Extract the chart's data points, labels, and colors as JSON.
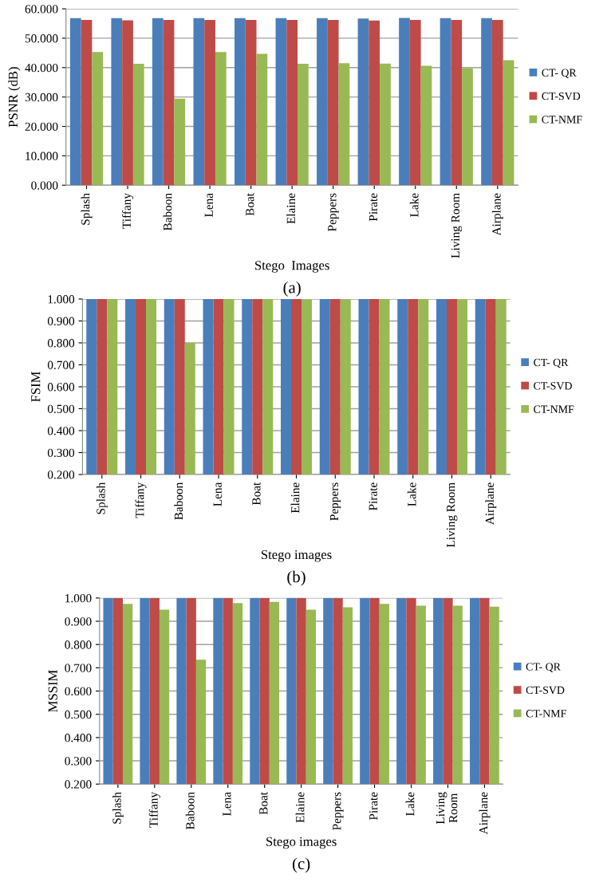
{
  "chart_data": [
    {
      "type": "bar",
      "xlabel": "Stego  Images",
      "ylabel": "PSNR (dB)",
      "annotations": [
        "(a)"
      ],
      "categories": [
        "Splash",
        "Tiffany",
        "Baboon",
        "Lena",
        "Boat",
        "Elaine",
        "Peppers",
        "Pirate",
        "Lake",
        "Living Room",
        "Airplane"
      ],
      "series": [
        {
          "name": "CT- QR",
          "color": "#4a7ebb",
          "values": [
            56.8,
            56.8,
            56.8,
            56.8,
            56.8,
            56.8,
            56.8,
            56.7,
            56.9,
            56.8,
            56.8
          ]
        },
        {
          "name": "CT-SVD",
          "color": "#be4b48",
          "values": [
            56.2,
            56.1,
            56.2,
            56.2,
            56.2,
            56.2,
            56.2,
            56.0,
            56.2,
            56.2,
            56.2
          ]
        },
        {
          "name": "CT-NMF",
          "color": "#98b954",
          "values": [
            45.3,
            41.3,
            29.4,
            45.3,
            44.7,
            41.3,
            41.5,
            41.4,
            40.6,
            39.8,
            42.5
          ]
        }
      ],
      "ylim": [
        0,
        60
      ],
      "yticks": [
        {
          "value": 0,
          "label": "0.000"
        },
        {
          "value": 10,
          "label": "10.000"
        },
        {
          "value": 20,
          "label": "20.000"
        },
        {
          "value": 30,
          "label": "30.000"
        },
        {
          "value": 40,
          "label": "40.000"
        },
        {
          "value": 50,
          "label": "50.000"
        },
        {
          "value": 60,
          "label": "60.000"
        }
      ],
      "grid": "y",
      "legend": "right"
    },
    {
      "type": "bar",
      "xlabel": "Stego images",
      "ylabel": "FSIM",
      "annotations": [
        "(b)"
      ],
      "categories": [
        "Splash",
        "Tiffany",
        "Baboon",
        "Lena",
        "Boat",
        "Elaine",
        "Peppers",
        "Pirate",
        "Lake",
        "Living Room",
        "Airplane"
      ],
      "series": [
        {
          "name": "CT- QR",
          "color": "#4a7ebb",
          "values": [
            1.0,
            1.0,
            1.0,
            1.0,
            1.0,
            1.0,
            1.0,
            1.0,
            1.0,
            1.0,
            1.0
          ]
        },
        {
          "name": "CT-SVD",
          "color": "#be4b48",
          "values": [
            1.0,
            1.0,
            1.0,
            1.0,
            1.0,
            1.0,
            1.0,
            1.0,
            1.0,
            1.0,
            1.0
          ]
        },
        {
          "name": "CT-NMF",
          "color": "#98b954",
          "values": [
            1.0,
            1.0,
            0.8,
            1.0,
            1.0,
            0.998,
            0.999,
            1.0,
            1.0,
            0.999,
            1.0
          ]
        }
      ],
      "ylim": [
        0.2,
        1.0
      ],
      "yticks": [
        {
          "value": 0.2,
          "label": "0.200"
        },
        {
          "value": 0.3,
          "label": "0.300"
        },
        {
          "value": 0.4,
          "label": "0.400"
        },
        {
          "value": 0.5,
          "label": "0.500"
        },
        {
          "value": 0.6,
          "label": "0.600"
        },
        {
          "value": 0.7,
          "label": "0.700"
        },
        {
          "value": 0.8,
          "label": "0.800"
        },
        {
          "value": 0.9,
          "label": "0.900"
        },
        {
          "value": 1.0,
          "label": "1.000"
        }
      ],
      "grid": "y",
      "legend": "right"
    },
    {
      "type": "bar",
      "xlabel": "Stego images",
      "ylabel": "MSSIM",
      "annotations": [
        "(c)"
      ],
      "categories": [
        "Splash",
        "Tiffany",
        "Baboon",
        "Lena",
        "Boat",
        "Elaine",
        "Peppers",
        "Pirate",
        "Lake",
        "Living\nRoom",
        "Airplane"
      ],
      "series": [
        {
          "name": "CT- QR",
          "color": "#4a7ebb",
          "values": [
            1.0,
            1.0,
            1.0,
            1.0,
            1.0,
            1.0,
            1.0,
            1.0,
            1.0,
            1.0,
            1.0
          ]
        },
        {
          "name": "CT-SVD",
          "color": "#be4b48",
          "values": [
            1.0,
            1.0,
            1.0,
            1.0,
            1.0,
            1.0,
            1.0,
            1.0,
            1.0,
            1.0,
            1.0
          ]
        },
        {
          "name": "CT-NMF",
          "color": "#98b954",
          "values": [
            0.975,
            0.95,
            0.735,
            0.978,
            0.983,
            0.95,
            0.96,
            0.975,
            0.967,
            0.967,
            0.963
          ]
        }
      ],
      "ylim": [
        0.2,
        1.0
      ],
      "yticks": [
        {
          "value": 0.2,
          "label": "0.200"
        },
        {
          "value": 0.3,
          "label": "0.300"
        },
        {
          "value": 0.4,
          "label": "0.400"
        },
        {
          "value": 0.5,
          "label": "0.500"
        },
        {
          "value": 0.6,
          "label": "0.600"
        },
        {
          "value": 0.7,
          "label": "0.700"
        },
        {
          "value": 0.8,
          "label": "0.800"
        },
        {
          "value": 0.9,
          "label": "0.900"
        },
        {
          "value": 1.0,
          "label": "1.000"
        }
      ],
      "grid": "y",
      "legend": "right"
    }
  ]
}
